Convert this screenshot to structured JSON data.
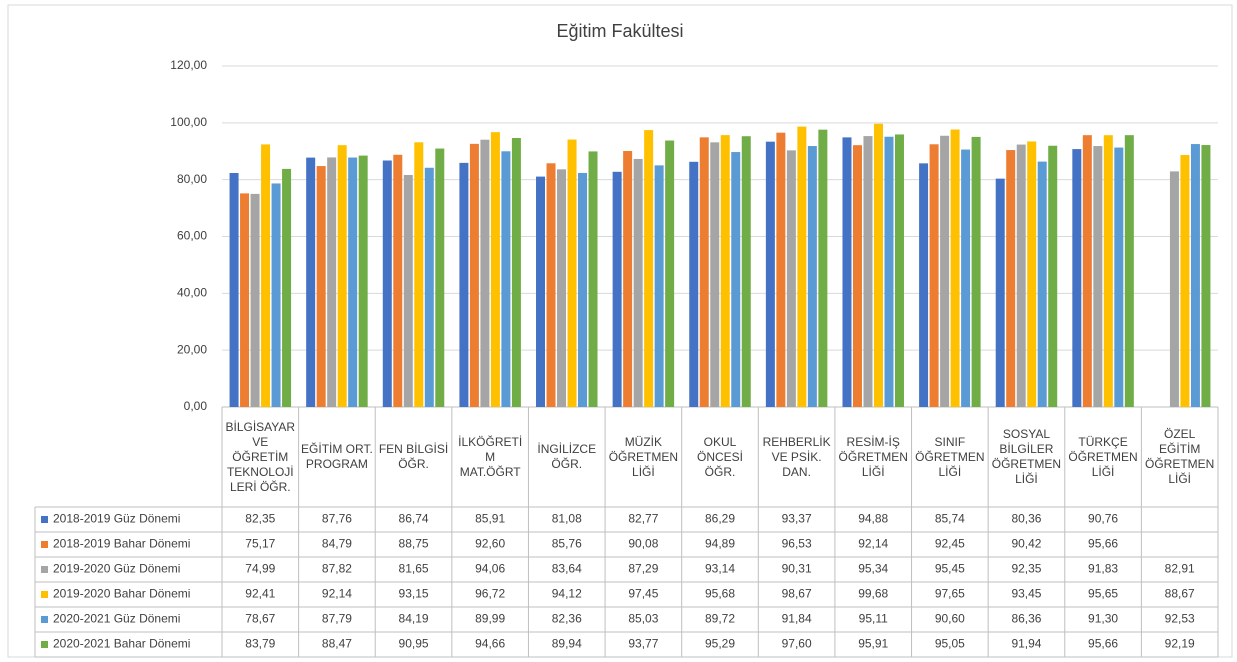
{
  "chart_data": {
    "type": "bar",
    "title": "Eğitim Fakültesi",
    "categories": [
      "BİLGİSAYAR VE ÖĞRETİM TEKNOLOJİLERİ ÖĞR.",
      "EĞİTİM ORT. PROGRAM",
      "FEN BİLGİSİ ÖĞR.",
      "İLKÖĞRETİM MAT.ÖĞRT",
      "İNGİLİZCE ÖĞR.",
      "MÜZİK ÖĞRETMENLİĞİ",
      "OKUL ÖNCESİ ÖĞR.",
      "REHBERLİK VE PSİK. DAN.",
      "RESİM-İŞ ÖĞRETMENLİĞİ",
      "SINIF ÖĞRETMENLİĞİ",
      "SOSYAL BİLGİLER ÖĞRETMENLİĞİ",
      "TÜRKÇE ÖĞRETMENLİĞİ",
      "ÖZEL EĞİTİM ÖĞRETMENLİĞİ"
    ],
    "series": [
      {
        "name": "2018-2019 Güz Dönemi",
        "color": "#4472c4",
        "values": [
          82.35,
          87.76,
          86.74,
          85.91,
          81.08,
          82.77,
          86.29,
          93.37,
          94.88,
          85.74,
          80.36,
          90.76,
          null
        ],
        "value_labels": [
          "82,35",
          "87,76",
          "86,74",
          "85,91",
          "81,08",
          "82,77",
          "86,29",
          "93,37",
          "94,88",
          "85,74",
          "80,36",
          "90,76",
          null
        ]
      },
      {
        "name": "2018-2019 Bahar Dönemi",
        "color": "#ed7d31",
        "values": [
          75.17,
          84.79,
          88.75,
          92.6,
          85.76,
          90.08,
          94.89,
          96.53,
          92.14,
          92.45,
          90.42,
          95.66,
          null
        ],
        "value_labels": [
          "75,17",
          "84,79",
          "88,75",
          "92,60",
          "85,76",
          "90,08",
          "94,89",
          "96,53",
          "92,14",
          "92,45",
          "90,42",
          "95,66",
          null
        ]
      },
      {
        "name": "2019-2020 Güz Dönemi",
        "color": "#a5a5a5",
        "values": [
          74.99,
          87.82,
          81.65,
          94.06,
          83.64,
          87.29,
          93.14,
          90.31,
          95.34,
          95.45,
          92.35,
          91.83,
          82.91
        ],
        "value_labels": [
          "74,99",
          "87,82",
          "81,65",
          "94,06",
          "83,64",
          "87,29",
          "93,14",
          "90,31",
          "95,34",
          "95,45",
          "92,35",
          "91,83",
          "82,91"
        ]
      },
      {
        "name": "2019-2020 Bahar Dönemi",
        "color": "#ffc000",
        "values": [
          92.41,
          92.14,
          93.15,
          96.72,
          94.12,
          97.45,
          95.68,
          98.67,
          99.68,
          97.65,
          93.45,
          95.65,
          88.67
        ],
        "value_labels": [
          "92,41",
          "92,14",
          "93,15",
          "96,72",
          "94,12",
          "97,45",
          "95,68",
          "98,67",
          "99,68",
          "97,65",
          "93,45",
          "95,65",
          "88,67"
        ]
      },
      {
        "name": "2020-2021 Güz Dönemi",
        "color": "#5b9bd5",
        "values": [
          78.67,
          87.79,
          84.19,
          89.99,
          82.36,
          85.03,
          89.72,
          91.84,
          95.11,
          90.6,
          86.36,
          91.3,
          92.53
        ],
        "value_labels": [
          "78,67",
          "87,79",
          "84,19",
          "89,99",
          "82,36",
          "85,03",
          "89,72",
          "91,84",
          "95,11",
          "90,60",
          "86,36",
          "91,30",
          "92,53"
        ]
      },
      {
        "name": "2020-2021 Bahar Dönemi",
        "color": "#70ad47",
        "values": [
          83.79,
          88.47,
          90.95,
          94.66,
          89.94,
          93.77,
          95.29,
          97.6,
          95.91,
          95.05,
          91.94,
          95.66,
          92.19
        ],
        "value_labels": [
          "83,79",
          "88,47",
          "90,95",
          "94,66",
          "89,94",
          "93,77",
          "95,29",
          "97,60",
          "95,91",
          "95,05",
          "91,94",
          "95,66",
          "92,19"
        ]
      }
    ],
    "ylim": [
      0,
      120
    ],
    "yticks": [
      {
        "value": 0,
        "label": "0,00"
      },
      {
        "value": 20,
        "label": "20,00"
      },
      {
        "value": 40,
        "label": "40,00"
      },
      {
        "value": 60,
        "label": "60,00"
      },
      {
        "value": 80,
        "label": "80,00"
      },
      {
        "value": 100,
        "label": "100,00"
      },
      {
        "value": 120,
        "label": "120,00"
      }
    ],
    "grid": true
  }
}
